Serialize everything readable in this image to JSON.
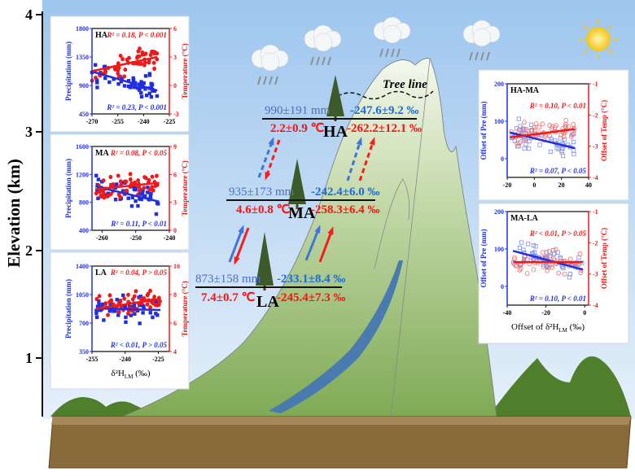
{
  "elevation_axis": {
    "label": "Elevation (km)",
    "ticks": [
      "4",
      "3",
      "2",
      "1"
    ]
  },
  "scene": {
    "tree_line": "Tree line",
    "colors": {
      "blue": "#3a5bd6",
      "red": "#ff1010",
      "mountain": "#9cc07a",
      "sky": "#cfe3f7",
      "ground": "#8a6a3a"
    },
    "zones": {
      "HA": {
        "name": "HA",
        "precip": "990±191 mm",
        "temp": "2.2±0.9 ℃",
        "d2h_blue": "-247.6±9.2 ‰",
        "d2h_red": "-262.2±12.1 ‰"
      },
      "MA": {
        "name": "MA",
        "precip": "935±173 mm",
        "temp": "4.6±0.8 ℃",
        "d2h_blue": "-242.4±6.0 ‰",
        "d2h_red": "-258.3±6.4 ‰"
      },
      "LA": {
        "name": "LA",
        "precip": "873±158 mm",
        "temp": "7.4±0.7 ℃",
        "d2h_blue": "-233.1±8.4 ‰",
        "d2h_red": "-245.4±7.3 ‰"
      }
    }
  },
  "chart_data": [
    {
      "type": "scatter",
      "panel": "HA",
      "xlim": [
        -270,
        -225
      ],
      "xticks": [
        "-270",
        "-255",
        "-240",
        "-225"
      ],
      "ylabel_left": "Precipitation (mm)",
      "ylim_left": [
        450,
        1800
      ],
      "yticks_left": [
        "450",
        "900",
        "1350",
        "1800"
      ],
      "ylabel_right": "Temperature (°C)",
      "ylim_right": [
        -3,
        6
      ],
      "yticks_right": [
        "-3",
        "0",
        "3",
        "6"
      ],
      "red_annotation": "R² = 0.18, P < 0.001",
      "blue_annotation": "R² = 0.23, P < 0.001",
      "blue_fit": [
        [
          -270,
          1120
        ],
        [
          -232,
          820
        ]
      ],
      "red_fit": [
        [
          -270,
          1.5
        ],
        [
          -232,
          3.0
        ]
      ],
      "marker": "filled"
    },
    {
      "type": "scatter",
      "panel": "MA",
      "xlim": [
        -263,
        -240
      ],
      "xticks": [
        "-260",
        "-250",
        "-240"
      ],
      "ylabel_left": "Precipitation (mm)",
      "ylim_left": [
        400,
        1600
      ],
      "yticks_left": [
        "400",
        "800",
        "1200",
        "1600"
      ],
      "ylabel_right": "Temperature (°C)",
      "ylim_right": [
        0,
        9
      ],
      "yticks_right": [
        "0",
        "3",
        "6",
        "9"
      ],
      "red_annotation": "R² = 0.08, P < 0.05",
      "blue_annotation": "R² = 0.11, P < 0.01",
      "blue_fit": [
        [
          -262,
          1030
        ],
        [
          -243,
          810
        ]
      ],
      "red_fit": [
        [
          -262,
          4.4
        ],
        [
          -243,
          5.1
        ]
      ],
      "marker": "filled"
    },
    {
      "type": "scatter",
      "panel": "LA",
      "xlim": [
        -255,
        -220
      ],
      "xticks": [
        "-255",
        "-240",
        "-225"
      ],
      "xlabel": {
        "main": "δ²H",
        "sub": "LM",
        "unit": " (‰)"
      },
      "ylabel_left": "Precipitation (mm)",
      "ylim_left": [
        350,
        1400
      ],
      "yticks_left": [
        "350",
        "700",
        "1050",
        "1400"
      ],
      "ylabel_right": "Temperature (°C)",
      "ylim_right": [
        4,
        10
      ],
      "yticks_right": [
        "4",
        "6",
        "8",
        "10"
      ],
      "red_annotation": "R² = 0.04, P > 0.05",
      "blue_annotation": "R² < 0.01, P > 0.05",
      "blue_fit": [
        [
          -253,
          880
        ],
        [
          -224,
          860
        ]
      ],
      "red_fit": [
        [
          -253,
          7.0
        ],
        [
          -224,
          7.7
        ]
      ],
      "marker": "filled"
    },
    {
      "type": "scatter",
      "panel": "HA-MA",
      "xlim": [
        -20,
        40
      ],
      "xticks": [
        "-20",
        "0",
        "20",
        "40"
      ],
      "ylabel_left": "Offset of Pre (mm)",
      "ylim_left": [
        -50,
        200
      ],
      "yticks_left": [
        "0",
        "100",
        "200"
      ],
      "ylabel_right": "Offset of Temp (°C)",
      "ylim_right": [
        -4,
        -1
      ],
      "yticks_right": [
        "-4",
        "-3",
        "-2",
        "-1"
      ],
      "red_annotation": "R² = 0.10, P < 0.01",
      "blue_annotation": "R² = 0.07, P < 0.05",
      "blue_fit": [
        [
          -18,
          70
        ],
        [
          30,
          28
        ]
      ],
      "red_fit": [
        [
          -18,
          -2.72
        ],
        [
          30,
          -2.45
        ]
      ],
      "marker": "open"
    },
    {
      "type": "scatter",
      "panel": "MA-LA",
      "xlim": [
        -40,
        2
      ],
      "xticks": [
        "-40",
        "-20",
        "0"
      ],
      "xlabel": {
        "main": "Offset of δ²H",
        "sub": "LM",
        "unit": " (‰)"
      },
      "ylabel_left": "Offset of Pre (mm)",
      "ylim_left": [
        -50,
        200
      ],
      "yticks_left": [
        "0",
        "100",
        "200"
      ],
      "ylabel_right": "Offset of Temp (°C)",
      "ylim_right": [
        -4,
        -1
      ],
      "yticks_right": [
        "-4",
        "-3",
        "-2",
        "-1"
      ],
      "red_annotation": "R² < 0.01, P > 0.05",
      "blue_annotation": "R² = 0.10, P < 0.01",
      "blue_fit": [
        [
          -37,
          95
        ],
        [
          -1,
          45
        ]
      ],
      "red_fit": [
        [
          -37,
          -2.62
        ],
        [
          -1,
          -2.62
        ]
      ],
      "marker": "open"
    }
  ]
}
